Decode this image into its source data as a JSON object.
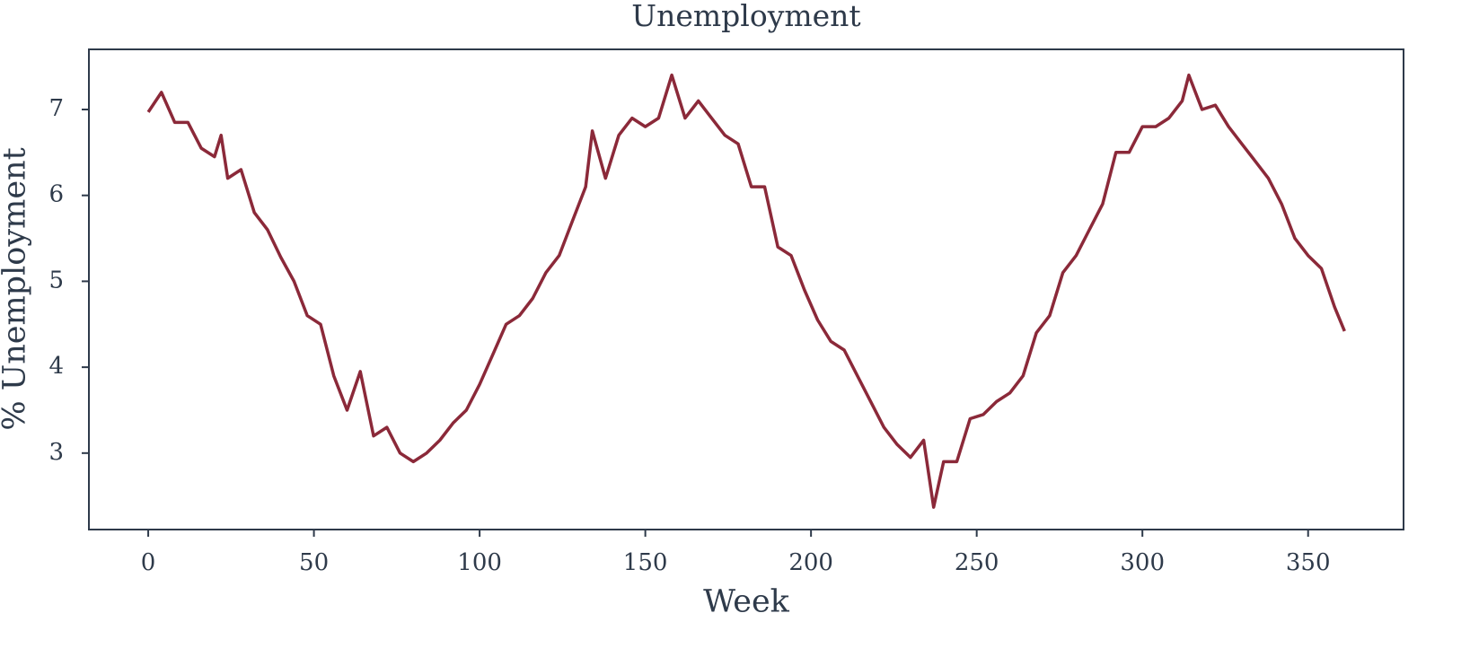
{
  "chart_data": {
    "type": "line",
    "title": "Unemployment",
    "x_label": "Week",
    "y_label": "% Unemployment",
    "x": [
      0,
      4,
      8,
      12,
      16,
      20,
      22,
      24,
      28,
      32,
      36,
      40,
      44,
      48,
      52,
      56,
      60,
      64,
      68,
      72,
      76,
      80,
      84,
      88,
      92,
      96,
      100,
      104,
      108,
      112,
      116,
      120,
      124,
      128,
      132,
      134,
      138,
      142,
      146,
      150,
      154,
      158,
      162,
      166,
      170,
      174,
      178,
      182,
      186,
      190,
      194,
      198,
      202,
      206,
      210,
      214,
      218,
      222,
      226,
      230,
      234,
      237,
      240,
      244,
      248,
      252,
      256,
      260,
      264,
      268,
      272,
      276,
      280,
      284,
      288,
      292,
      296,
      300,
      304,
      308,
      312,
      314,
      318,
      322,
      326,
      330,
      334,
      338,
      342,
      346,
      350,
      354,
      358,
      361
    ],
    "series": [
      {
        "name": "Unemployment",
        "color": "#8b2939",
        "values": [
          6.97,
          7.2,
          6.85,
          6.85,
          6.55,
          6.45,
          6.7,
          6.2,
          6.3,
          5.8,
          5.6,
          5.28,
          5.0,
          4.6,
          4.5,
          3.9,
          3.5,
          3.95,
          3.2,
          3.3,
          3.0,
          2.9,
          3.0,
          3.15,
          3.35,
          3.5,
          3.8,
          4.15,
          4.5,
          4.6,
          4.8,
          5.1,
          5.3,
          5.7,
          6.1,
          6.75,
          6.2,
          6.7,
          6.9,
          6.8,
          6.9,
          7.4,
          6.9,
          7.1,
          6.9,
          6.7,
          6.6,
          6.1,
          6.1,
          5.4,
          5.3,
          4.9,
          4.55,
          4.3,
          4.2,
          3.9,
          3.6,
          3.3,
          3.1,
          2.95,
          3.15,
          2.37,
          2.9,
          2.9,
          3.4,
          3.45,
          3.6,
          3.7,
          3.9,
          4.4,
          4.6,
          5.1,
          5.3,
          5.6,
          5.9,
          6.5,
          6.5,
          6.8,
          6.8,
          6.9,
          7.1,
          7.4,
          7.0,
          7.05,
          6.8,
          6.6,
          6.4,
          6.2,
          5.9,
          5.5,
          5.3,
          5.15,
          4.7,
          4.42
        ]
      }
    ],
    "xlim": [
      -17.9,
      378.8
    ],
    "ylim": [
      2.11,
      7.7
    ],
    "xticks": [
      0,
      50,
      100,
      150,
      200,
      250,
      300,
      350
    ],
    "yticks": [
      3,
      4,
      5,
      6,
      7
    ]
  }
}
